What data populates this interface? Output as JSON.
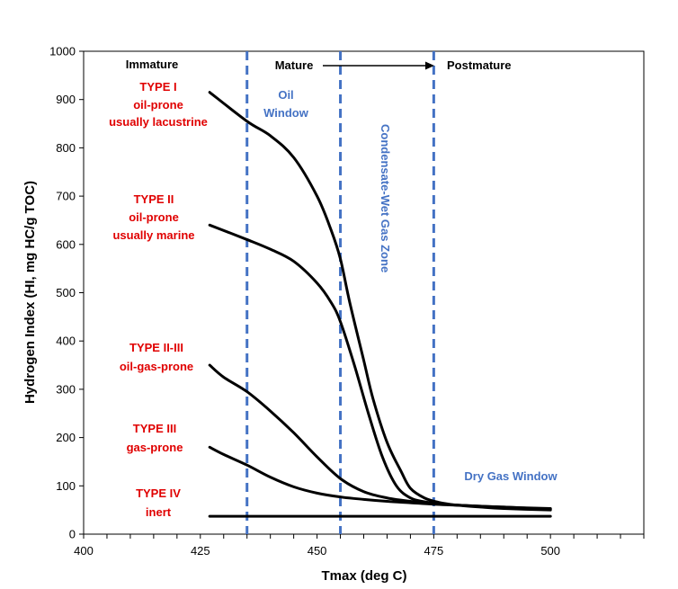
{
  "chart_data": {
    "type": "line",
    "xlabel": "Tmax (deg C)",
    "ylabel": "Hydrogen Index (HI, mg HC/g TOC)",
    "xlim": [
      400,
      520
    ],
    "ylim": [
      0,
      1000
    ],
    "x_ticks": [
      400,
      425,
      450,
      475,
      500
    ],
    "y_ticks": [
      0,
      100,
      200,
      300,
      400,
      500,
      600,
      700,
      800,
      900,
      1000
    ],
    "grid": false,
    "series": [
      {
        "name": "TYPE I",
        "x": [
          427,
          435,
          440,
          445,
          450,
          453,
          455,
          457,
          460,
          462,
          465,
          468,
          470,
          473,
          476,
          480,
          485,
          490,
          500
        ],
        "y": [
          915,
          855,
          825,
          780,
          700,
          630,
          570,
          480,
          360,
          280,
          190,
          130,
          95,
          75,
          66,
          60,
          56,
          53,
          50
        ]
      },
      {
        "name": "TYPE II",
        "x": [
          427,
          435,
          440,
          445,
          450,
          453,
          455,
          458,
          461,
          464,
          467,
          470,
          473,
          476,
          480,
          490,
          500
        ],
        "y": [
          640,
          610,
          590,
          565,
          520,
          480,
          440,
          350,
          250,
          160,
          100,
          75,
          67,
          63,
          60,
          55,
          52
        ]
      },
      {
        "name": "TYPE II-III",
        "x": [
          427,
          430,
          435,
          440,
          445,
          450,
          455,
          460,
          465,
          470,
          475,
          480,
          490,
          500
        ],
        "y": [
          350,
          325,
          295,
          255,
          210,
          160,
          115,
          88,
          75,
          68,
          64,
          60,
          56,
          52
        ]
      },
      {
        "name": "TYPE III",
        "x": [
          427,
          430,
          435,
          440,
          445,
          450,
          455,
          460,
          465,
          470,
          475,
          480,
          490,
          500
        ],
        "y": [
          180,
          165,
          143,
          118,
          98,
          85,
          77,
          72,
          68,
          65,
          62,
          60,
          56,
          53
        ]
      },
      {
        "name": "TYPE IV",
        "x": [
          427,
          500
        ],
        "y": [
          37,
          37
        ]
      }
    ],
    "vlines": [
      435,
      455,
      475
    ],
    "annotations": {
      "immature": "Immature",
      "mature": "Mature",
      "postmature": "Postmature",
      "oil_window_1": "Oil",
      "oil_window_2": "Window",
      "condensate": "Condensate-Wet Gas Zone",
      "dry_gas": "Dry Gas Window"
    },
    "type_labels": [
      {
        "id": "type1",
        "lines": [
          "TYPE I",
          "oil-prone",
          "usually lacustrine"
        ]
      },
      {
        "id": "type2",
        "lines": [
          "TYPE II",
          "oil-prone",
          "usually marine"
        ]
      },
      {
        "id": "type23",
        "lines": [
          "TYPE II-III",
          "oil-gas-prone"
        ]
      },
      {
        "id": "type3",
        "lines": [
          "TYPE III",
          "gas-prone"
        ]
      },
      {
        "id": "type4",
        "lines": [
          "TYPE IV",
          "inert"
        ]
      }
    ],
    "colors": {
      "curve": "#000000",
      "window": "#4472c4",
      "type_label": "#e00000",
      "axis": "#000000"
    }
  }
}
